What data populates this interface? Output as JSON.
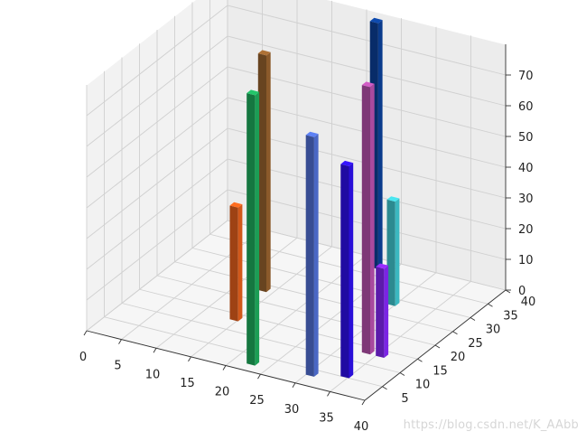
{
  "chart_data": {
    "type": "bar3d",
    "title": "",
    "xlabel": "",
    "ylabel": "",
    "zlabel": "",
    "grid": true,
    "xlim": [
      0,
      40
    ],
    "ylim": [
      0,
      40
    ],
    "zlim": [
      0,
      80
    ],
    "x_ticks": [
      "0",
      "5",
      "10",
      "15",
      "20",
      "25",
      "30",
      "35",
      "40"
    ],
    "y_ticks": [
      "5",
      "10",
      "15",
      "20",
      "25",
      "30",
      "35",
      "40"
    ],
    "z_ticks": [
      "0",
      "10",
      "20",
      "30",
      "40",
      "50",
      "60",
      "70"
    ],
    "bars": [
      {
        "x": 22,
        "y": 37,
        "z": 80,
        "color": "#0a3b8c"
      },
      {
        "x": 29,
        "y": 28,
        "z": 34,
        "color": "#3bb8c0"
      },
      {
        "x": 13,
        "y": 23,
        "z": 77,
        "color": "#8b5a2b"
      },
      {
        "x": 33,
        "y": 13,
        "z": 87,
        "color": "#a84a9e"
      },
      {
        "x": 22,
        "y": 2,
        "z": 88,
        "color": "#1c9e55"
      },
      {
        "x": 14,
        "y": 13,
        "z": 37,
        "color": "#d2581a"
      },
      {
        "x": 35,
        "y": 13,
        "z": 29,
        "color": "#7b24e4"
      },
      {
        "x": 34,
        "y": 5,
        "z": 69,
        "color": "#2a0fd8"
      },
      {
        "x": 30,
        "y": 3,
        "z": 78,
        "color": "#4a67c4"
      }
    ]
  },
  "watermark": "https://blog.csdn.net/K_AAbb"
}
